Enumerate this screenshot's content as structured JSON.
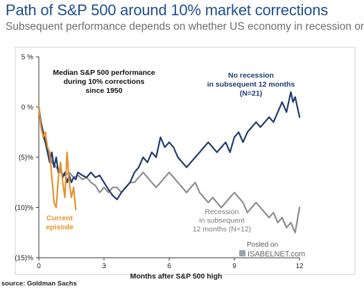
{
  "header": {
    "title": "Path of S&P 500 around 10% market corrections",
    "subtitle": "Subsequent performance depends on whether US economy in recession or not"
  },
  "source": "source: Goldman Sachs",
  "watermark": {
    "line1": "Posted on",
    "line2": "ISABELNET.com"
  },
  "chart_data": {
    "type": "line",
    "title": "",
    "xlabel": "Months after S&P 500 high",
    "ylabel": "",
    "xlim": [
      0,
      12
    ],
    "ylim": [
      -15,
      5
    ],
    "x_ticks": [
      0,
      3,
      6,
      9,
      12
    ],
    "x_tick_labels": [
      "0",
      "3",
      "6",
      "9",
      "12"
    ],
    "y_ticks": [
      5,
      0,
      -5,
      -10,
      -15
    ],
    "y_tick_labels": [
      "5 %",
      "0 %",
      "(5)%",
      "(10)%",
      "(15)%"
    ],
    "grid": false,
    "annotations": {
      "main": "Median S&P 500 performance during 10% corrections since 1950",
      "no_recession": "No recession in subsequent 12 months (N=21)",
      "recession": "Recession in subsequent 12 months (N=12)",
      "current": "Current episode"
    },
    "series": [
      {
        "name": "No recession in subsequent 12 months (N=21)",
        "color": "#1f3a6e",
        "x": [
          0,
          0.1,
          0.2,
          0.3,
          0.4,
          0.5,
          0.6,
          0.7,
          0.8,
          0.9,
          1.0,
          1.1,
          1.2,
          1.3,
          1.4,
          1.5,
          1.6,
          1.7,
          1.8,
          2.0,
          2.2,
          2.4,
          2.6,
          2.8,
          3.0,
          3.2,
          3.4,
          3.6,
          3.8,
          4.0,
          4.2,
          4.4,
          4.6,
          4.8,
          5.0,
          5.2,
          5.4,
          5.6,
          5.8,
          6.0,
          6.2,
          6.4,
          6.6,
          6.8,
          7.0,
          7.2,
          7.4,
          7.6,
          7.8,
          8.0,
          8.2,
          8.4,
          8.6,
          8.8,
          9.0,
          9.2,
          9.4,
          9.6,
          9.8,
          10.0,
          10.2,
          10.4,
          10.6,
          10.8,
          11.0,
          11.2,
          11.4,
          11.6,
          11.7,
          11.8,
          11.9,
          12.0
        ],
        "values": [
          0,
          -1.5,
          -2.5,
          -3.5,
          -4.5,
          -5.5,
          -4.5,
          -6.0,
          -5.0,
          -6.5,
          -6.0,
          -7.0,
          -6.5,
          -7.5,
          -6.8,
          -7.5,
          -7.0,
          -7.2,
          -6.5,
          -6.8,
          -7.0,
          -6.5,
          -7.0,
          -6.8,
          -7.5,
          -8.2,
          -8.8,
          -9.2,
          -8.5,
          -8.0,
          -7.5,
          -6.5,
          -6.0,
          -5.0,
          -5.5,
          -4.5,
          -5.0,
          -3.0,
          -4.0,
          -3.5,
          -4.0,
          -5.0,
          -5.5,
          -6.0,
          -5.5,
          -5.0,
          -4.5,
          -4.0,
          -3.5,
          -4.0,
          -4.5,
          -4.0,
          -3.5,
          -4.5,
          -3.0,
          -2.5,
          -3.5,
          -2.5,
          -2.0,
          -1.5,
          -2.0,
          -1.5,
          -1.0,
          -1.5,
          -0.5,
          0.5,
          -0.5,
          1.5,
          0.5,
          1.0,
          0.0,
          -1.0
        ]
      },
      {
        "name": "Recession in subsequent 12 months (N=12)",
        "color": "#8c8c8c",
        "x": [
          0,
          0.2,
          0.4,
          0.6,
          0.8,
          1.0,
          1.2,
          1.4,
          1.6,
          1.8,
          2.0,
          2.2,
          2.4,
          2.6,
          2.8,
          3.0,
          3.2,
          3.4,
          3.6,
          3.8,
          4.0,
          4.2,
          4.4,
          4.6,
          4.8,
          5.0,
          5.2,
          5.4,
          5.6,
          5.8,
          6.0,
          6.2,
          6.4,
          6.6,
          6.8,
          7.0,
          7.2,
          7.4,
          7.6,
          7.8,
          8.0,
          8.2,
          8.4,
          8.6,
          8.8,
          9.0,
          9.2,
          9.4,
          9.6,
          9.8,
          10.0,
          10.2,
          10.4,
          10.6,
          10.8,
          11.0,
          11.2,
          11.4,
          11.6,
          11.8,
          12.0
        ],
        "values": [
          0,
          -3.0,
          -4.0,
          -5.5,
          -6.0,
          -6.5,
          -6.8,
          -6.5,
          -7.0,
          -6.8,
          -7.2,
          -7.0,
          -7.5,
          -7.8,
          -8.5,
          -8.0,
          -8.5,
          -8.0,
          -8.0,
          -8.5,
          -8.0,
          -7.5,
          -7.5,
          -7.0,
          -6.5,
          -7.0,
          -7.5,
          -8.0,
          -7.5,
          -7.0,
          -6.5,
          -7.0,
          -7.5,
          -8.0,
          -8.5,
          -8.0,
          -7.5,
          -8.5,
          -9.0,
          -9.5,
          -9.0,
          -9.5,
          -10.0,
          -9.5,
          -9.0,
          -8.5,
          -9.0,
          -9.5,
          -10.5,
          -10.0,
          -9.5,
          -10.0,
          -10.5,
          -11.0,
          -10.5,
          -11.5,
          -11.0,
          -12.0,
          -11.5,
          -12.5,
          -10.0
        ]
      },
      {
        "name": "Current episode",
        "color": "#e8912b",
        "x": [
          0,
          0.1,
          0.2,
          0.3,
          0.4,
          0.5,
          0.6,
          0.7,
          0.8,
          0.9,
          1.0,
          1.1,
          1.2,
          1.3,
          1.4,
          1.5,
          1.6,
          1.7
        ],
        "values": [
          0,
          -2.0,
          -3.0,
          -2.5,
          -4.0,
          -4.5,
          -7.0,
          -9.5,
          -10.0,
          -7.0,
          -5.5,
          -7.5,
          -9.0,
          -4.5,
          -7.5,
          -9.0,
          -8.0,
          -10.2
        ]
      }
    ]
  }
}
